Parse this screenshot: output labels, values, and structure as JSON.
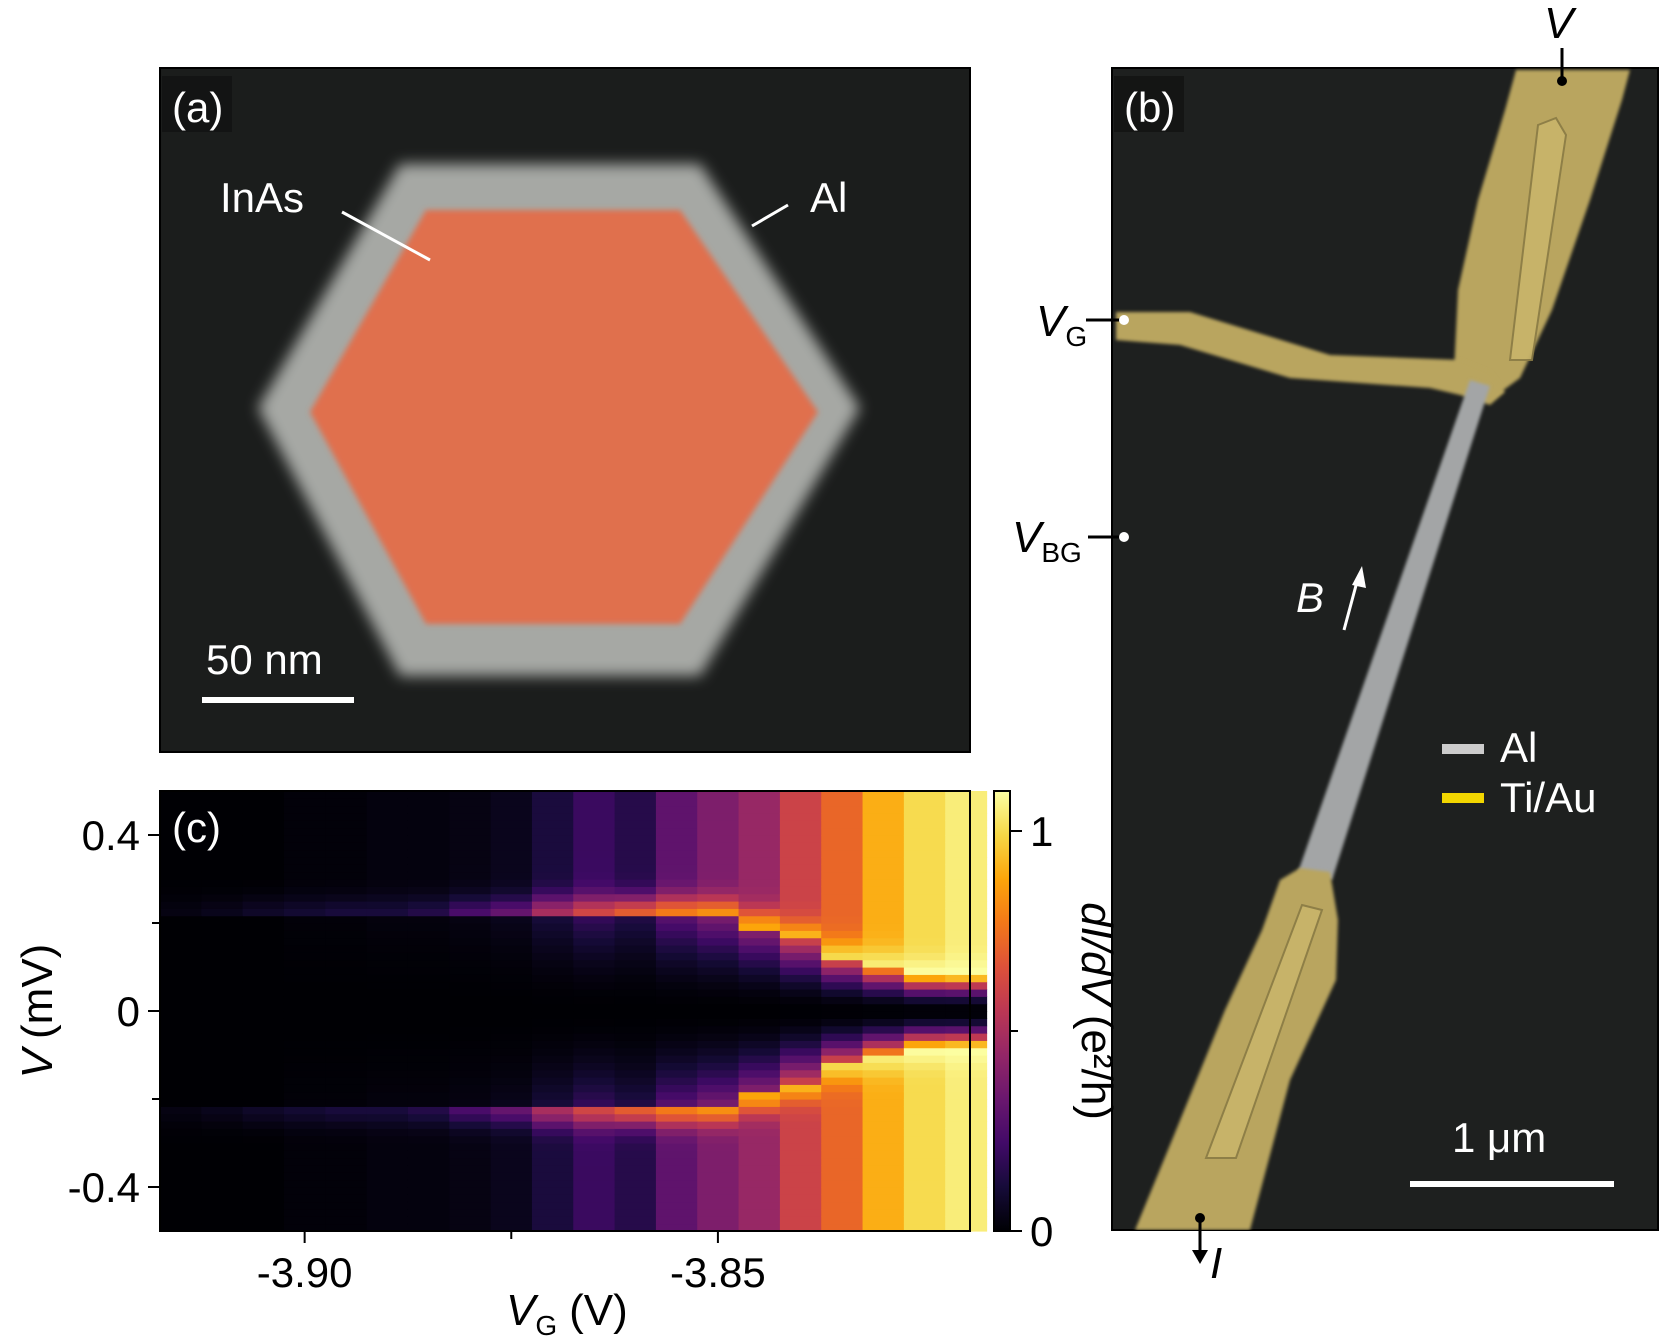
{
  "panel_a": {
    "label": "(a)",
    "core_label": "InAs",
    "shell_label": "Al",
    "scalebar_label": "50 nm",
    "colors": {
      "background": "#1b1d1c",
      "core": "#e0704d",
      "shell": "#a6a8a4",
      "text": "#ffffff"
    }
  },
  "panel_b": {
    "label": "(b)",
    "field_label": "B",
    "terminal_V": "V",
    "terminal_I": "I",
    "gate_label": "V",
    "gate_sub": "G",
    "backgate_label": "V",
    "backgate_sub": "BG",
    "legend": [
      {
        "label": "Al",
        "color": "#cccccc"
      },
      {
        "label": "Ti/Au",
        "color": "#f2d600"
      }
    ],
    "scalebar_label": "1 μm",
    "colors": {
      "background": "#1e201f",
      "contact": "#b9a55e",
      "wire": "#a3a5a6"
    }
  },
  "panel_c": {
    "label": "(c)"
  },
  "chart_data": {
    "type": "heatmap",
    "xlabel": "V",
    "xlabel_sub": "G",
    "xlabel_unit": "(V)",
    "ylabel": "V",
    "ylabel_unit": "(mV)",
    "colorbar_label": "dI/dV",
    "colorbar_unit": "(e²/h)",
    "colormap": "inferno",
    "x_ticks": [
      "-3.90",
      "-3.85"
    ],
    "x_tick_values": [
      -3.9,
      -3.85
    ],
    "y_ticks": [
      "0.4",
      "0",
      "-0.4"
    ],
    "y_tick_values": [
      0.4,
      0,
      -0.4
    ],
    "colorbar_ticks": [
      "1",
      "0"
    ],
    "colorbar_tick_values": [
      1,
      0
    ],
    "xlim": [
      -3.9175,
      -3.8195
    ],
    "ylim": [
      -0.5,
      0.5
    ],
    "zlim": [
      0,
      1.1
    ],
    "columns": [
      {
        "vg": -3.915,
        "background": 0.0,
        "peak": 0.03,
        "gap_v": 0.215
      },
      {
        "vg": -3.91,
        "background": 0.0,
        "peak": 0.05,
        "gap_v": 0.215
      },
      {
        "vg": -3.905,
        "background": 0.0,
        "peak": 0.08,
        "gap_v": 0.215
      },
      {
        "vg": -3.9,
        "background": 0.01,
        "peak": 0.1,
        "gap_v": 0.215
      },
      {
        "vg": -3.895,
        "background": 0.01,
        "peak": 0.12,
        "gap_v": 0.215
      },
      {
        "vg": -3.89,
        "background": 0.02,
        "peak": 0.12,
        "gap_v": 0.215
      },
      {
        "vg": -3.885,
        "background": 0.02,
        "peak": 0.15,
        "gap_v": 0.215
      },
      {
        "vg": -3.88,
        "background": 0.03,
        "peak": 0.25,
        "gap_v": 0.215
      },
      {
        "vg": -3.875,
        "background": 0.05,
        "peak": 0.33,
        "gap_v": 0.215
      },
      {
        "vg": -3.87,
        "background": 0.12,
        "peak": 0.5,
        "gap_v": 0.22
      },
      {
        "vg": -3.865,
        "background": 0.2,
        "peak": 0.62,
        "gap_v": 0.22
      },
      {
        "vg": -3.86,
        "background": 0.15,
        "peak": 0.7,
        "gap_v": 0.22
      },
      {
        "vg": -3.855,
        "background": 0.3,
        "peak": 0.78,
        "gap_v": 0.22
      },
      {
        "vg": -3.85,
        "background": 0.38,
        "peak": 0.85,
        "gap_v": 0.215
      },
      {
        "vg": -3.845,
        "background": 0.45,
        "peak": 0.88,
        "gap_v": 0.19
      },
      {
        "vg": -3.84,
        "background": 0.6,
        "peak": 0.95,
        "gap_v": 0.16
      },
      {
        "vg": -3.835,
        "background": 0.72,
        "peak": 1.0,
        "gap_v": 0.12
      },
      {
        "vg": -3.83,
        "background": 0.9,
        "peak": 1.05,
        "gap_v": 0.1
      },
      {
        "vg": -3.825,
        "background": 1.0,
        "peak": 1.1,
        "gap_v": 0.08
      },
      {
        "vg": -3.82,
        "background": 1.05,
        "peak": 1.1,
        "gap_v": 0.08
      }
    ]
  }
}
